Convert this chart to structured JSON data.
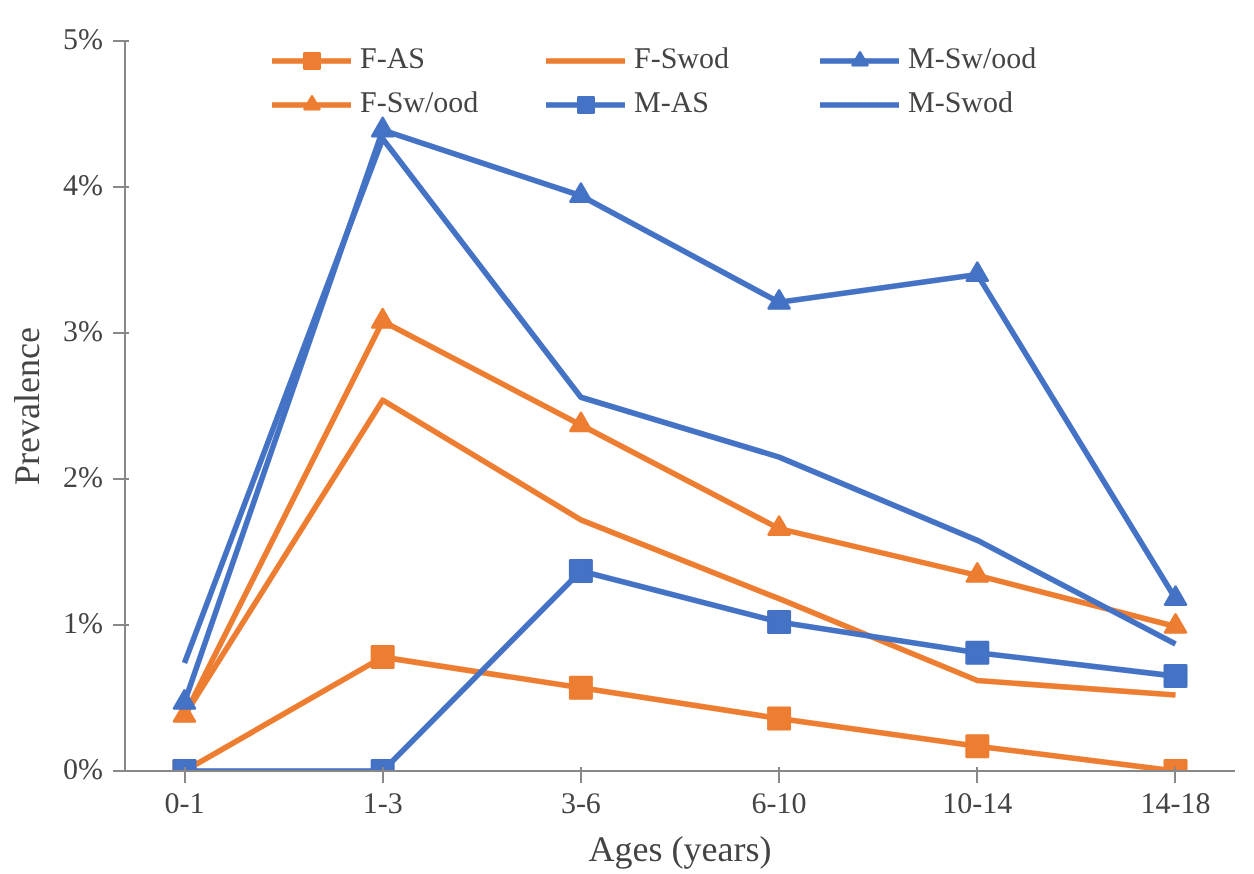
{
  "chart_data": {
    "type": "line",
    "xlabel": "Ages (years)",
    "ylabel": "Prevalence",
    "categories": [
      "0-1",
      "1-3",
      "3-6",
      "6-10",
      "10-14",
      "14-18"
    ],
    "ylim": [
      0,
      5
    ],
    "yticks": [
      {
        "value": 0,
        "label": "0%"
      },
      {
        "value": 1,
        "label": "1%"
      },
      {
        "value": 2,
        "label": "2%"
      },
      {
        "value": 3,
        "label": "3%"
      },
      {
        "value": 4,
        "label": "4%"
      },
      {
        "value": 5,
        "label": "5%"
      }
    ],
    "grid": false,
    "legend": "top",
    "line_style": "solid",
    "series": [
      {
        "name": "F-AS",
        "color": "#ed7d31",
        "marker": "square",
        "values": [
          0,
          0.78,
          0.57,
          0.36,
          0.17,
          0
        ]
      },
      {
        "name": "F-Sw/ood",
        "color": "#ed7d31",
        "marker": "triangle",
        "values": [
          0.38,
          3.08,
          2.37,
          1.66,
          1.34,
          0.99
        ]
      },
      {
        "name": "F-Swod",
        "color": "#ed7d31",
        "marker": "none",
        "values": [
          0.38,
          2.54,
          1.72,
          1.18,
          0.62,
          0.52
        ]
      },
      {
        "name": "M-AS",
        "color": "#4472c4",
        "marker": "square",
        "values": [
          0,
          0,
          1.37,
          1.02,
          0.81,
          0.65
        ]
      },
      {
        "name": "M-Sw/ood",
        "color": "#4472c4",
        "marker": "triangle",
        "values": [
          0.47,
          4.39,
          3.94,
          3.21,
          3.4,
          1.18
        ]
      },
      {
        "name": "M-Swod",
        "color": "#4472c4",
        "marker": "none",
        "values": [
          0.74,
          4.33,
          2.56,
          2.15,
          1.58,
          0.87
        ]
      }
    ]
  }
}
